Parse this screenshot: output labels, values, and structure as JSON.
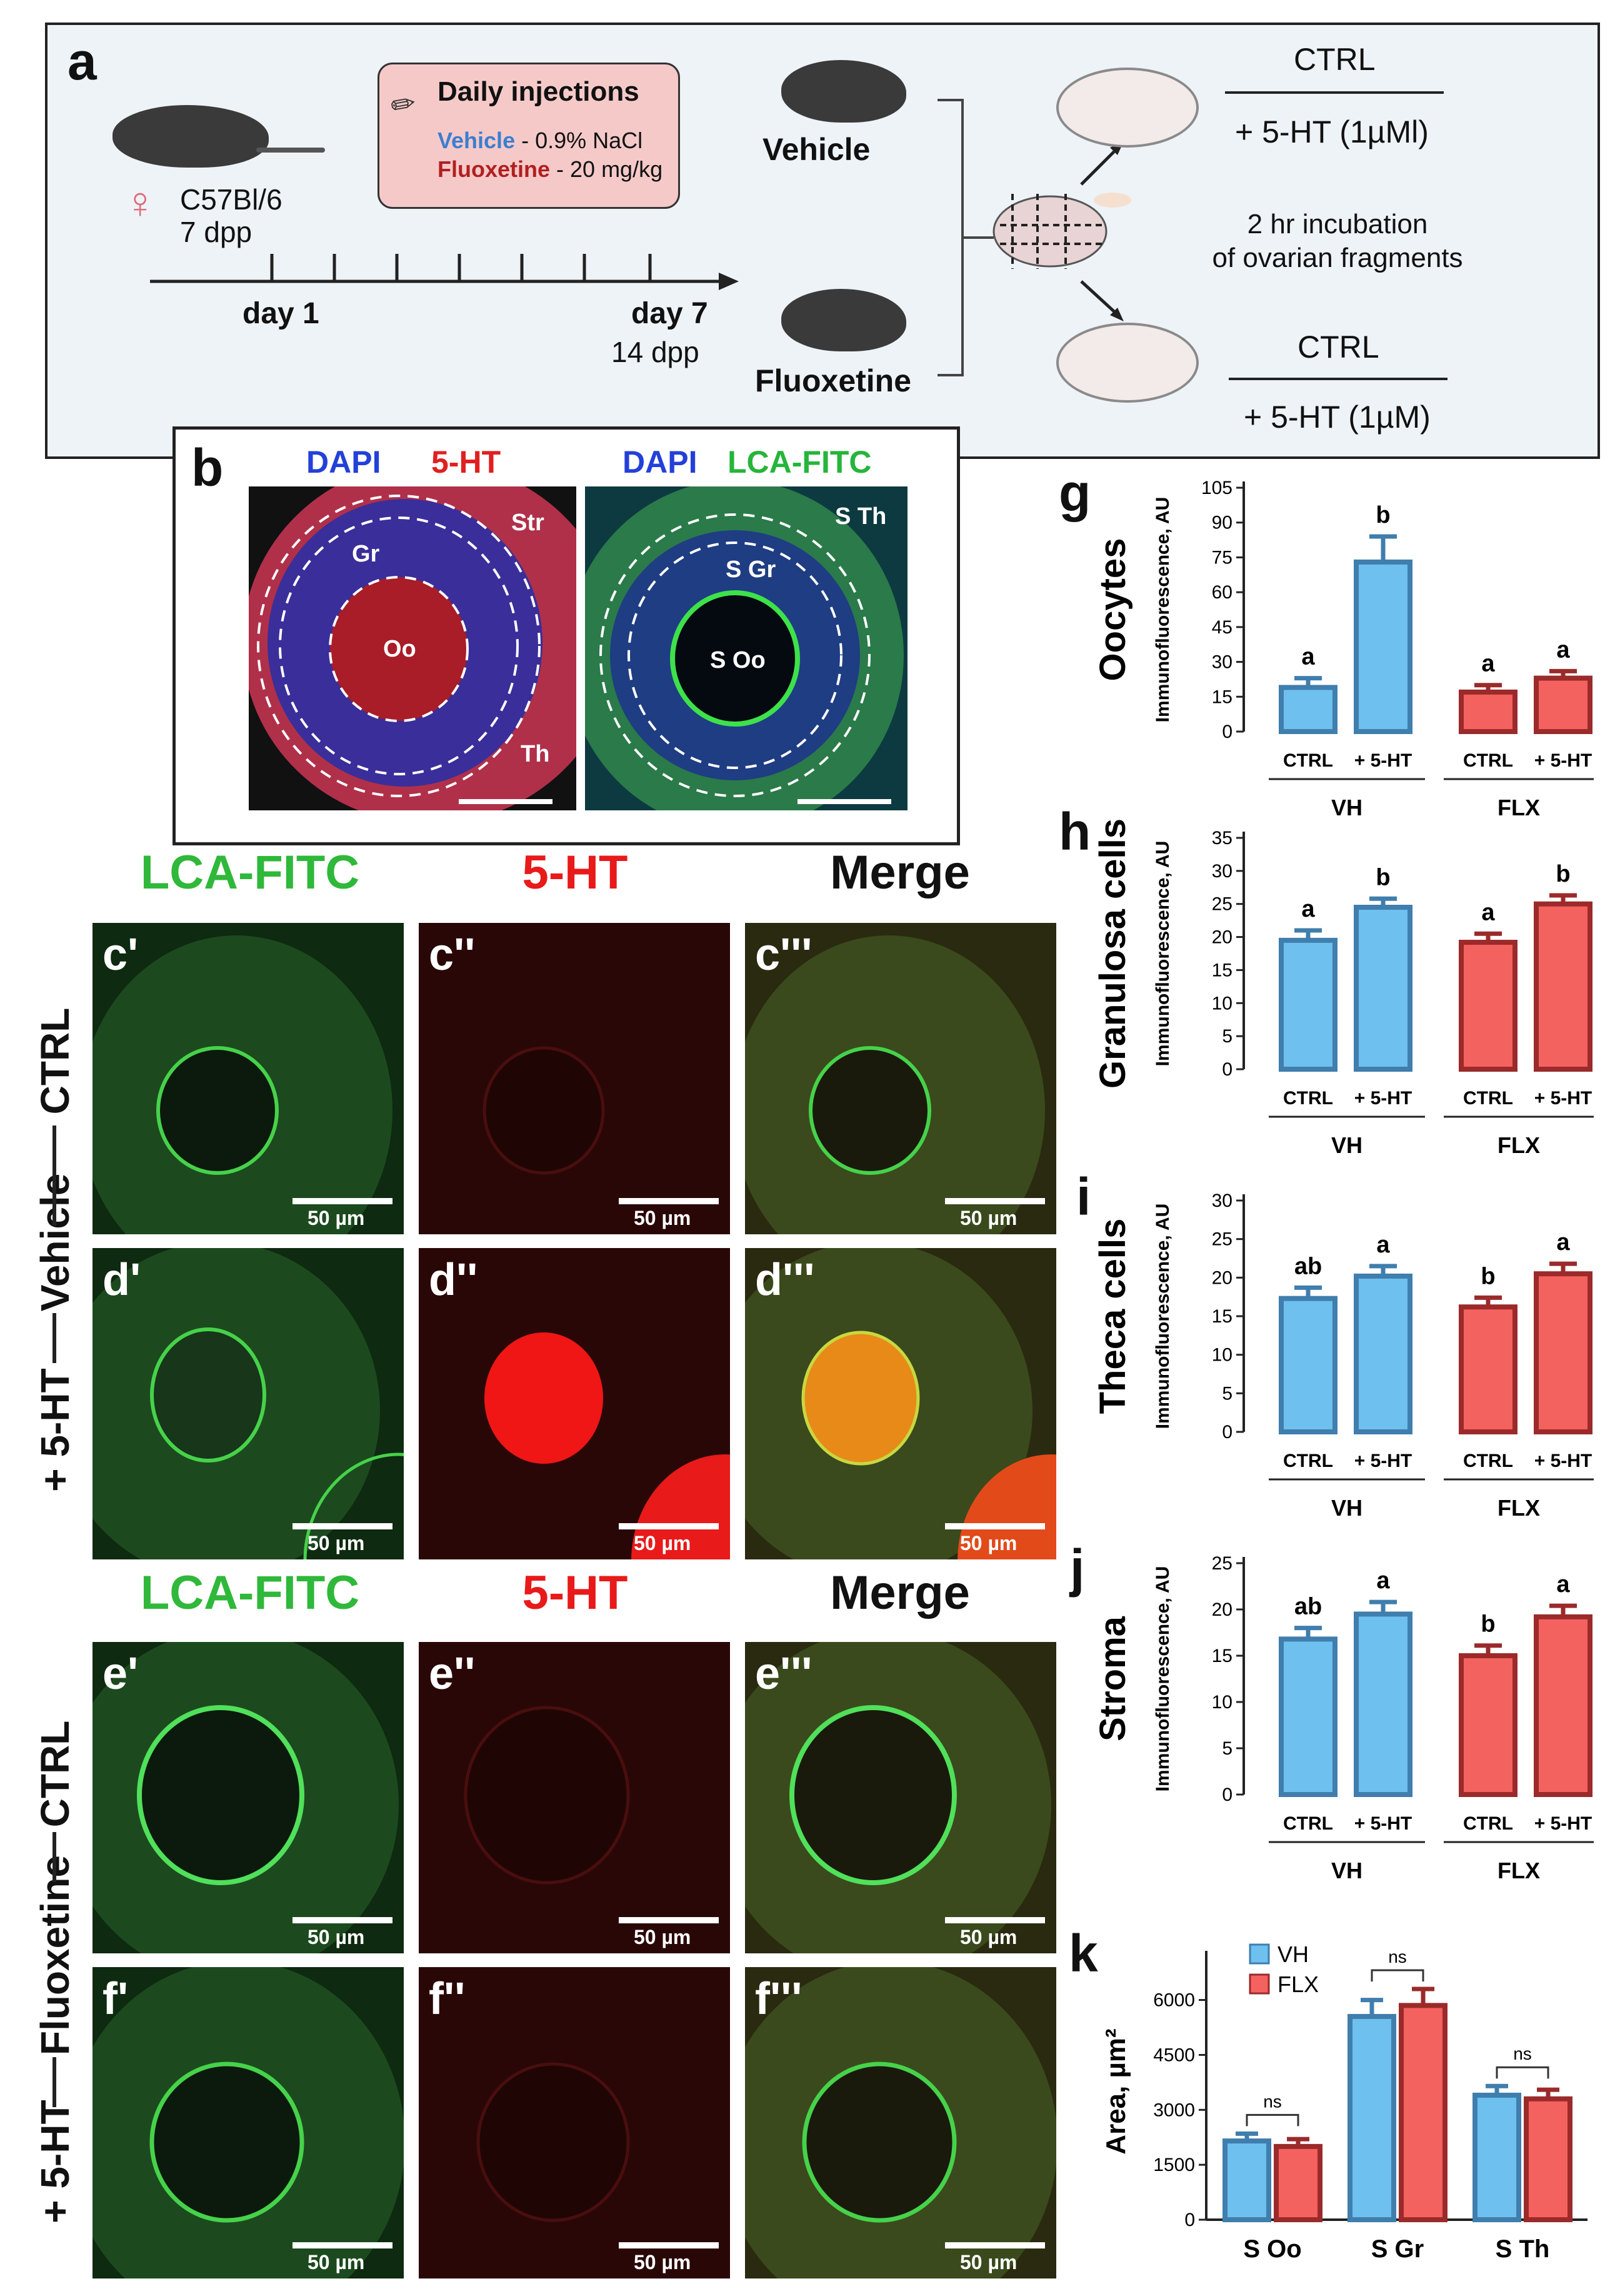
{
  "panel_a": {
    "label": "a",
    "strain": "C57Bl/6",
    "age_start": "7 dpp",
    "injection_box_title": "Daily injections",
    "vehicle_line_name": "Vehicle",
    "vehicle_line_rest": " - 0.9% NaCl",
    "fluoxetine_line_name": "Fluoxetine",
    "fluoxetine_line_rest": " - 20 mg/kg",
    "timeline_start": "day 1",
    "timeline_end": "day 7",
    "age_end": "14 dpp",
    "group_vehicle": "Vehicle",
    "group_fluoxetine": "Fluoxetine",
    "top_ctrl": "CTRL",
    "top_treat": "+ 5-HT (1µMl)",
    "incubation": "2 hr incubation\nof ovarian fragments",
    "bottom_ctrl": "CTRL",
    "bottom_treat": "+ 5-HT (1µM)",
    "colors": {
      "vehicle": "#3a7fd0",
      "fluoxetine": "#b02020",
      "female": "#e06c7a"
    }
  },
  "panel_b": {
    "label": "b",
    "left_stain1": "DAPI",
    "left_stain2": "5-HT",
    "right_stain1": "DAPI",
    "right_stain2": "LCA-FITC",
    "left_regions": [
      "Str",
      "Gr",
      "Oo",
      "Th"
    ],
    "right_regions": [
      "S Th",
      "S Gr",
      "S Oo"
    ]
  },
  "micrographs": {
    "top_headers": [
      "LCA-FITC",
      "5-HT",
      "Merge"
    ],
    "bottom_headers": [
      "LCA-FITC",
      "5-HT",
      "Merge"
    ],
    "row_labels": {
      "ctrl_1": "CTRL",
      "vehicle": "Vehicle",
      "treat_1": "+ 5-HT",
      "ctrl_2": "CTRL",
      "fluoxetine": "Fluoxetine",
      "treat_2": "+ 5-HT"
    },
    "panel_tags": [
      "c'",
      "c''",
      "c'''",
      "d'",
      "d''",
      "d'''",
      "e'",
      "e''",
      "e'''",
      "f'",
      "f''",
      "f'''"
    ],
    "scale_bar": "50 µm"
  },
  "chart_data": [
    {
      "type": "bar",
      "panel": "g",
      "title": "Oocytes",
      "ylabel": "Immunofluorescence, AU",
      "ylim": [
        0,
        105
      ],
      "yticks": [
        0,
        15,
        30,
        45,
        60,
        75,
        90,
        105
      ],
      "categories": [
        "CTRL",
        "+ 5-HT",
        "CTRL",
        "+ 5-HT"
      ],
      "groups": [
        "VH",
        "FLX"
      ],
      "values": [
        19,
        73,
        17,
        23
      ],
      "errors": [
        4,
        11,
        3,
        3
      ],
      "letters": [
        "a",
        "b",
        "a",
        "a"
      ]
    },
    {
      "type": "bar",
      "panel": "h",
      "title": "Granulosa cells",
      "ylabel": "Immunofluorescence, AU",
      "ylim": [
        0,
        35
      ],
      "yticks": [
        0,
        5,
        10,
        15,
        20,
        25,
        30,
        35
      ],
      "categories": [
        "CTRL",
        "+ 5-HT",
        "CTRL",
        "+ 5-HT"
      ],
      "groups": [
        "VH",
        "FLX"
      ],
      "values": [
        19.5,
        24.5,
        19.2,
        25
      ],
      "errors": [
        1.5,
        1.3,
        1.3,
        1.3
      ],
      "letters": [
        "a",
        "b",
        "a",
        "b"
      ]
    },
    {
      "type": "bar",
      "panel": "i",
      "title": "Theca cells",
      "ylabel": "Immunofluorescence, AU",
      "ylim": [
        0,
        30
      ],
      "yticks": [
        0,
        5,
        10,
        15,
        20,
        25,
        30
      ],
      "categories": [
        "CTRL",
        "+ 5-HT",
        "CTRL",
        "+ 5-HT"
      ],
      "groups": [
        "VH",
        "FLX"
      ],
      "values": [
        17.3,
        20.2,
        16.2,
        20.5
      ],
      "errors": [
        1.4,
        1.3,
        1.2,
        1.3
      ],
      "letters": [
        "ab",
        "a",
        "b",
        "a"
      ]
    },
    {
      "type": "bar",
      "panel": "j",
      "title": "Stroma",
      "ylabel": "Immunofluorescence, AU",
      "ylim": [
        0,
        25
      ],
      "yticks": [
        0,
        5,
        10,
        15,
        20,
        25
      ],
      "categories": [
        "CTRL",
        "+ 5-HT",
        "CTRL",
        "+ 5-HT"
      ],
      "groups": [
        "VH",
        "FLX"
      ],
      "values": [
        16.8,
        19.5,
        15,
        19.2
      ],
      "errors": [
        1.2,
        1.3,
        1.1,
        1.2
      ],
      "letters": [
        "ab",
        "a",
        "b",
        "a"
      ]
    },
    {
      "type": "bar",
      "panel": "k",
      "ylabel": "Area, µm²",
      "ylim": [
        0,
        7000
      ],
      "yticks": [
        0,
        1500,
        3000,
        4500,
        6000
      ],
      "categories": [
        "S Oo",
        "S Gr",
        "S Th"
      ],
      "series": [
        {
          "name": "VH",
          "values": [
            2150,
            5550,
            3400
          ],
          "errors": [
            200,
            450,
            250
          ]
        },
        {
          "name": "FLX",
          "values": [
            2000,
            5850,
            3300
          ],
          "errors": [
            200,
            450,
            250
          ]
        }
      ],
      "significance": [
        "ns",
        "ns",
        "ns"
      ]
    }
  ],
  "chart_colors": {
    "blue_fill": "#6ec0ee",
    "blue_edge": "#3f7ead",
    "red_fill": "#f4625f",
    "red_edge": "#9b2a2a"
  }
}
